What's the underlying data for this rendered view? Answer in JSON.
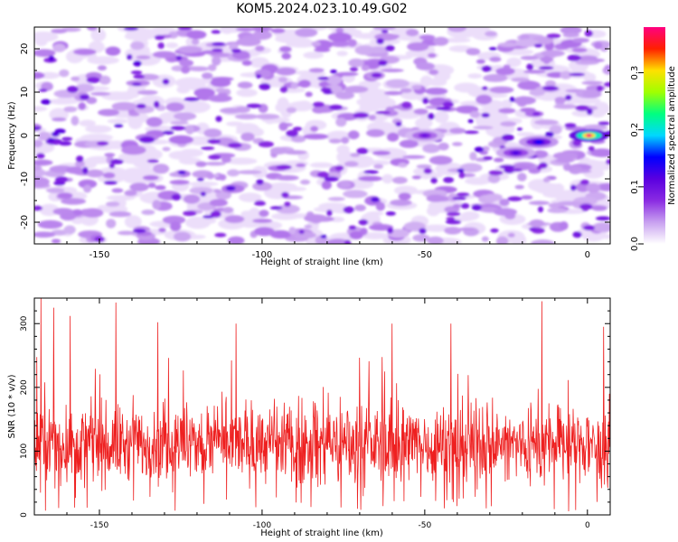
{
  "title": "KOM5.2024.023.10.49.G02",
  "chart_data": [
    {
      "type": "heatmap",
      "xlabel": "Height of straight line (km)",
      "ylabel": "Frequency (Hz)",
      "xlim": [
        -170,
        7
      ],
      "ylim": [
        -25,
        25
      ],
      "xticks": [
        -150,
        -100,
        -50,
        0
      ],
      "yticks": [
        -20,
        -10,
        0,
        10,
        20
      ],
      "colorbar": {
        "label": "Normalized spectral amplitude",
        "range": [
          0.0,
          0.38
        ],
        "ticks": [
          0.0,
          0.1,
          0.2,
          0.3
        ],
        "colormap": [
          "#ffffff",
          "#c8a0f0",
          "#8a2be2",
          "#5a00e0",
          "#0000ff",
          "#00d8ff",
          "#00ff80",
          "#a0ff00",
          "#ffe000",
          "#ff2000",
          "#ff0080"
        ]
      },
      "features": [
        {
          "x": 0.5,
          "y": 0,
          "value": 0.38,
          "desc": "peak"
        },
        {
          "x": -15,
          "y": -1.5,
          "value": 0.15
        },
        {
          "x": -22,
          "y": -4,
          "value": 0.12
        },
        {
          "x": -50,
          "y": 0,
          "value": 0.1
        }
      ]
    },
    {
      "type": "line",
      "xlabel": "Height of straight line (km)",
      "ylabel": "SNR (10 * v/v)",
      "xlim": [
        -170,
        7
      ],
      "ylim": [
        0,
        340
      ],
      "xticks": [
        -150,
        -100,
        -50,
        0
      ],
      "yticks": [
        0,
        100,
        200,
        300
      ],
      "series": [
        {
          "color": "#ee2020",
          "mean": 110,
          "spread": 55,
          "peaks": [
            {
              "x": -168,
              "y": 340
            },
            {
              "x": -164,
              "y": 325
            },
            {
              "x": -159,
              "y": 312
            },
            {
              "x": -145,
              "y": 333
            },
            {
              "x": -132,
              "y": 302
            },
            {
              "x": -108,
              "y": 300
            },
            {
              "x": -60,
              "y": 300
            },
            {
              "x": -42,
              "y": 300
            },
            {
              "x": -14,
              "y": 335
            },
            {
              "x": 5,
              "y": 295
            }
          ]
        }
      ]
    }
  ]
}
